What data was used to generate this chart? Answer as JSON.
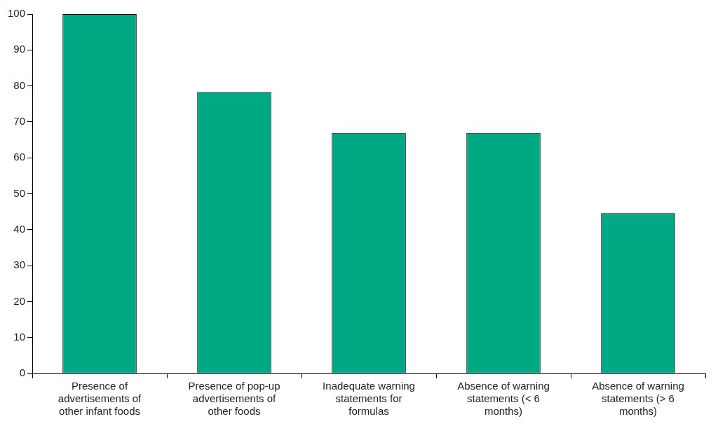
{
  "chart_data": {
    "type": "bar",
    "categories": [
      "Presence of advertisements of other infant foods",
      "Presence of pop-up advertisements of other foods",
      "Inadequate warning statements for formulas",
      "Absence of warning statements (< 6 months)",
      "Absence of warning statements (> 6 months)"
    ],
    "values": [
      100,
      78.3,
      66.9,
      66.9,
      44.6
    ],
    "color": "#00a884",
    "ylim": [
      0,
      100
    ],
    "yticks": [
      0,
      10,
      20,
      30,
      40,
      50,
      60,
      70,
      80,
      90,
      100
    ],
    "grid": false,
    "legend": false
  }
}
